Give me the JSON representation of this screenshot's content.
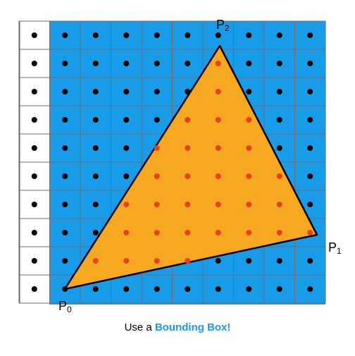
{
  "labels": [
    {
      "base": "P",
      "sub": "0"
    },
    {
      "base": "P",
      "sub": "1"
    },
    {
      "base": "P",
      "sub": "2"
    }
  ],
  "caption": {
    "prefix": "Use a",
    "emphasis": "Bounding Box!"
  }
}
